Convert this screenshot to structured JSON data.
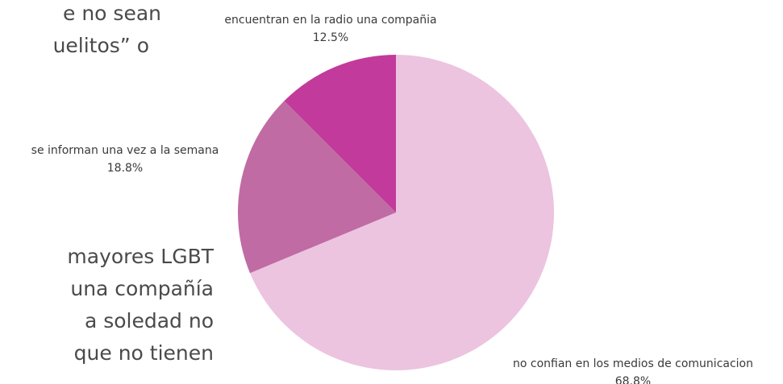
{
  "text_lines": [
    "e no sean",
    "uelitos”    o",
    "mayores LGBT",
    "una compañía",
    "a soledad no",
    "que no tienen"
  ],
  "chart_data": {
    "type": "pie",
    "categories": [
      "no confian en los medios de comunicacion",
      "se informan una vez a la semana",
      "encuentran en la radio una compañia"
    ],
    "values": [
      68.8,
      18.8,
      12.5
    ],
    "value_labels": [
      "68.8%",
      "18.8%",
      "12.5%"
    ],
    "colors": [
      "#ecc4df",
      "#c06ba4",
      "#c23a9b"
    ]
  }
}
